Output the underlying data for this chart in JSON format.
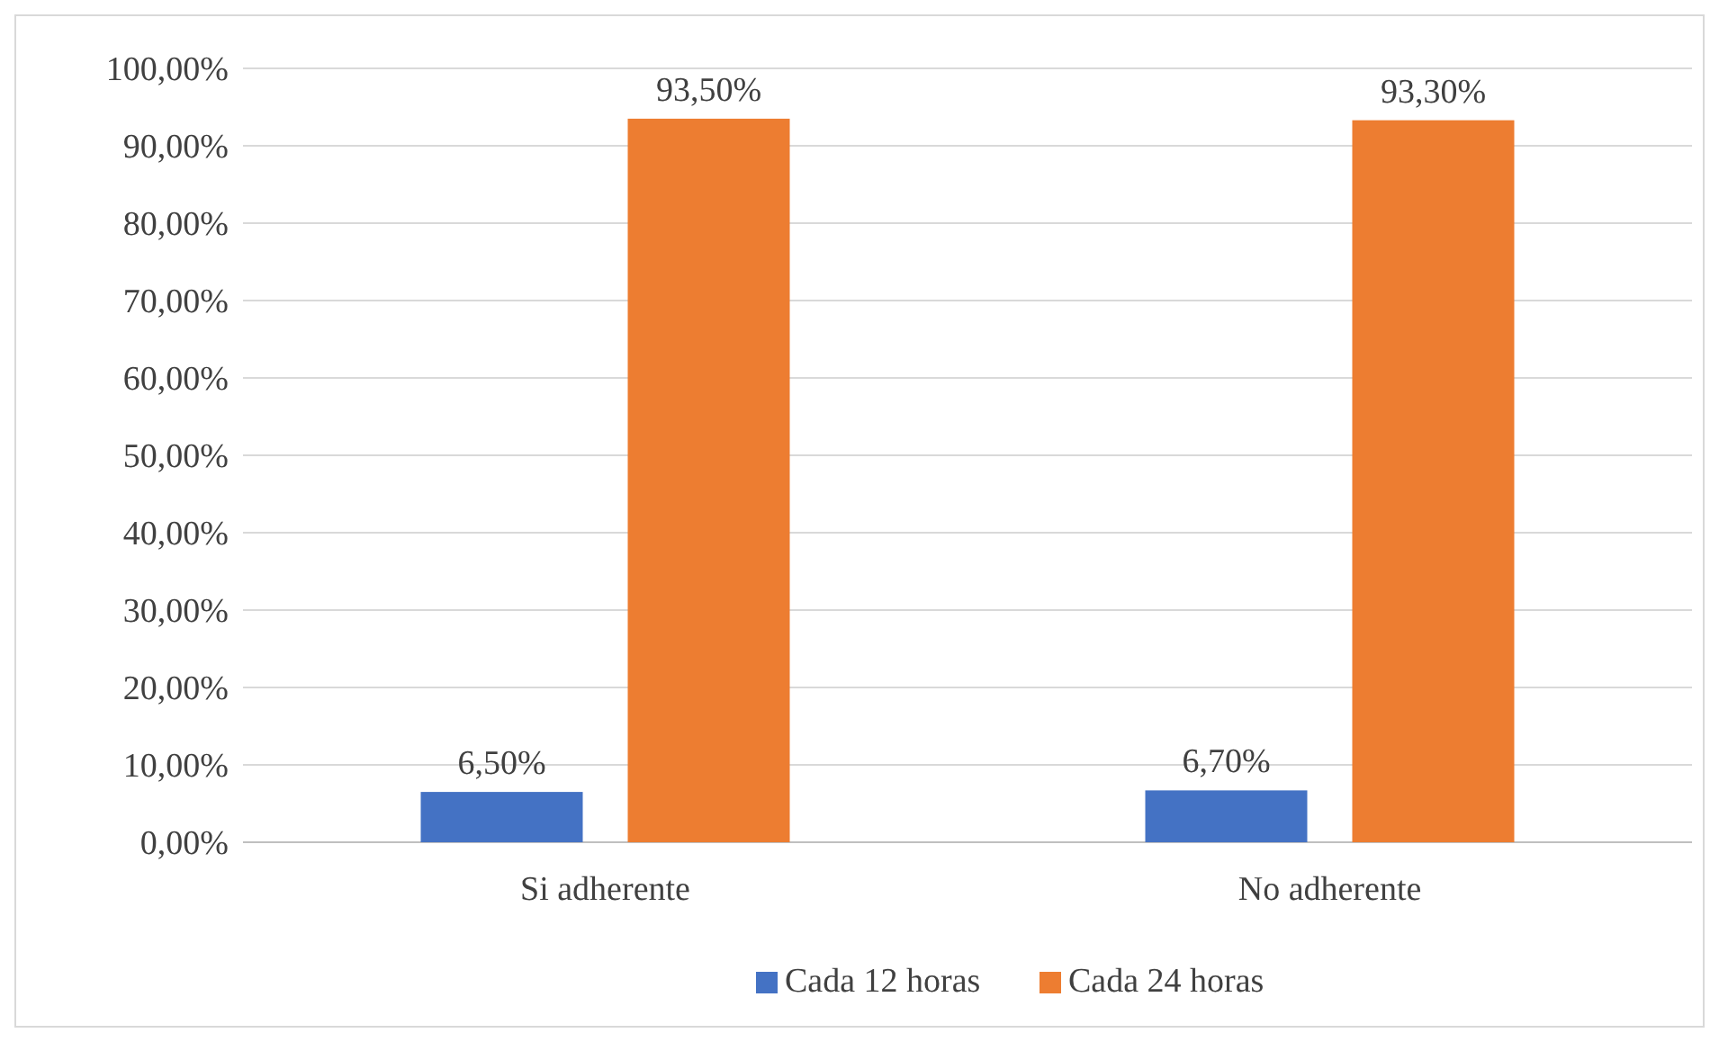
{
  "chart_data": {
    "type": "bar",
    "categories": [
      "Si adherente",
      "No adherente"
    ],
    "series": [
      {
        "name": "Cada 12 horas",
        "color": "#4472c4",
        "values": [
          6.5,
          6.7
        ],
        "value_labels": [
          "6,50%",
          "6,70%"
        ]
      },
      {
        "name": "Cada 24 horas",
        "color": "#ed7d31",
        "values": [
          93.5,
          93.3
        ],
        "value_labels": [
          "93,50%",
          "93,30%"
        ]
      }
    ],
    "ylim": [
      0,
      100
    ],
    "yticks": [
      {
        "value": 0,
        "label": "0,00%"
      },
      {
        "value": 10,
        "label": "10,00%"
      },
      {
        "value": 20,
        "label": "20,00%"
      },
      {
        "value": 30,
        "label": "30,00%"
      },
      {
        "value": 40,
        "label": "40,00%"
      },
      {
        "value": 50,
        "label": "50,00%"
      },
      {
        "value": 60,
        "label": "60,00%"
      },
      {
        "value": 70,
        "label": "70,00%"
      },
      {
        "value": 80,
        "label": "80,00%"
      },
      {
        "value": 90,
        "label": "90,00%"
      },
      {
        "value": 100,
        "label": "100,00%"
      }
    ],
    "grid": "y",
    "legend": "bottom"
  }
}
